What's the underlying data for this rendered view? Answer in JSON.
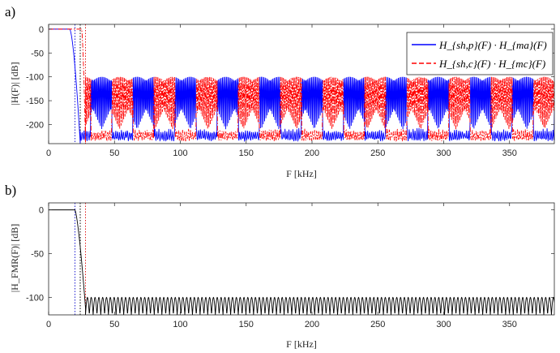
{
  "chart_data": [
    {
      "panel": "a)",
      "type": "line",
      "xlabel": "F [kHz]",
      "ylabel": "|H(F)| [dB]",
      "xlim": [
        0,
        384
      ],
      "ylim": [
        -240,
        10
      ],
      "xticks": [
        0,
        50,
        100,
        150,
        200,
        250,
        300,
        350
      ],
      "yticks": [
        0,
        -50,
        -100,
        -150,
        -200
      ],
      "grid": false,
      "legend_position": "top-right",
      "vlines": [
        {
          "x": 20,
          "color": "#1f1fd0",
          "style": "dotted"
        },
        {
          "x": 24,
          "color": "#000000",
          "style": "dotted"
        },
        {
          "x": 28,
          "color": "#e01b1b",
          "style": "dotted"
        }
      ],
      "series": [
        {
          "name": "H_{sh,p}(F) · H_{ma}(F)",
          "legend_text": "H_{sh,p}(F) · H_{ma}(F)",
          "color": "#0000ff",
          "style": "solid",
          "passband": {
            "x": [
              0,
              16
            ],
            "y": 0
          },
          "transition_end": 24,
          "stopband_floor": -240,
          "image_bands": {
            "start": 32,
            "period": 32,
            "width": 16,
            "level": -100,
            "trough": -215
          }
        },
        {
          "name": "H_{sh,c}(F) · H_{mc}(F)",
          "legend_text": "H_{sh,c}(F) · H_{mc}(F)",
          "color": "#ff0000",
          "style": "dashdot",
          "passband": {
            "x": [
              0,
              25
            ],
            "y": 0
          },
          "transition_end": 28,
          "stopband_floor": -240,
          "image_bands": {
            "start": 16,
            "period": 32,
            "width": 16,
            "level": -100,
            "trough": -215
          }
        }
      ]
    },
    {
      "panel": "b)",
      "type": "line",
      "xlabel": "F [kHz]",
      "ylabel": "|H_FMR(F)| [dB]",
      "xlim": [
        0,
        384
      ],
      "ylim": [
        -120,
        8
      ],
      "xticks": [
        0,
        50,
        100,
        150,
        200,
        250,
        300,
        350
      ],
      "yticks": [
        0,
        -50,
        -100
      ],
      "grid": false,
      "vlines": [
        {
          "x": 20,
          "color": "#1f1fd0",
          "style": "dotted"
        },
        {
          "x": 24,
          "color": "#000000",
          "style": "dotted"
        },
        {
          "x": 28,
          "color": "#e01b1b",
          "style": "dotted"
        }
      ],
      "series": [
        {
          "color": "#000000",
          "style": "solid",
          "passband": {
            "x": [
              0,
              20
            ],
            "y": 0
          },
          "transition_end": 28,
          "ripple": {
            "start": 28,
            "end": 384,
            "period": 2.9,
            "peak": -100,
            "trough": -120
          }
        }
      ]
    }
  ]
}
